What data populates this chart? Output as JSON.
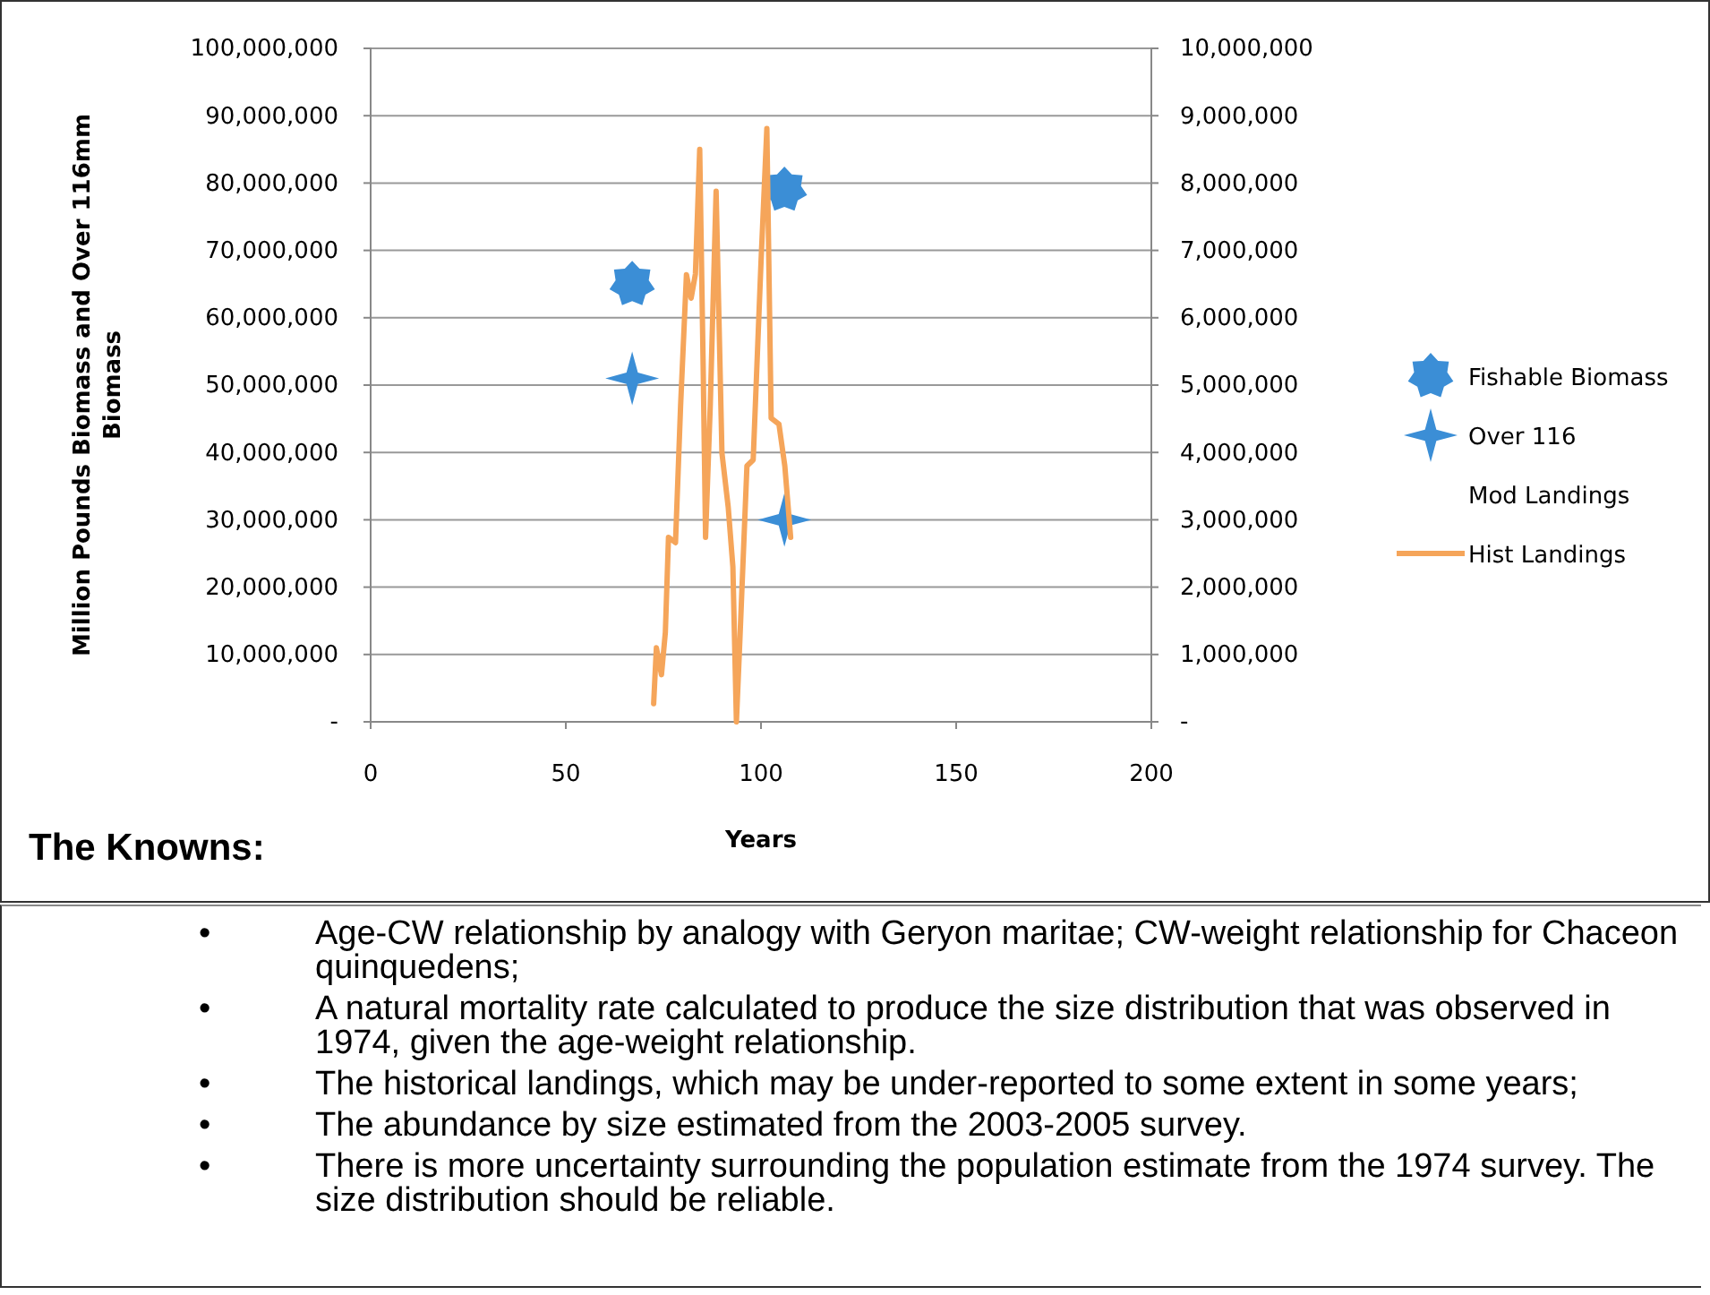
{
  "chart_data": {
    "type": "scatter",
    "xlabel": "Years",
    "ylabel": "Million Pounds Biomass and Over 116mm Biomass",
    "xlim": [
      0,
      200
    ],
    "xticks": [
      0,
      50,
      100,
      150,
      200
    ],
    "ylim": [
      0,
      100000000
    ],
    "yticks": [
      {
        "value": 0,
        "label": "-"
      },
      {
        "value": 10000000,
        "label": "10,000,000"
      },
      {
        "value": 20000000,
        "label": "20,000,000"
      },
      {
        "value": 30000000,
        "label": "30,000,000"
      },
      {
        "value": 40000000,
        "label": "40,000,000"
      },
      {
        "value": 50000000,
        "label": "50,000,000"
      },
      {
        "value": 60000000,
        "label": "60,000,000"
      },
      {
        "value": 70000000,
        "label": "70,000,000"
      },
      {
        "value": 80000000,
        "label": "80,000,000"
      },
      {
        "value": 90000000,
        "label": "90,000,000"
      },
      {
        "value": 100000000,
        "label": "100,000,000"
      }
    ],
    "y2lim": [
      0,
      10000000
    ],
    "y2ticks": [
      {
        "value": 0,
        "label": "-"
      },
      {
        "value": 1000000,
        "label": "1,000,000"
      },
      {
        "value": 2000000,
        "label": "2,000,000"
      },
      {
        "value": 3000000,
        "label": "3,000,000"
      },
      {
        "value": 4000000,
        "label": "4,000,000"
      },
      {
        "value": 5000000,
        "label": "5,000,000"
      },
      {
        "value": 6000000,
        "label": "6,000,000"
      },
      {
        "value": 7000000,
        "label": "7,000,000"
      },
      {
        "value": 8000000,
        "label": "8,000,000"
      },
      {
        "value": 9000000,
        "label": "9,000,000"
      },
      {
        "value": 10000000,
        "label": "10,000,000"
      }
    ],
    "grid": "y",
    "legend": "right",
    "series": [
      {
        "name": "Fishable Biomass",
        "marker": "star",
        "color": "#3b8ed6",
        "x": [
          67,
          106
        ],
        "values": [
          65000000,
          79000000
        ]
      },
      {
        "name": "Over 116",
        "marker": "cross",
        "color": "#3b8ed6",
        "x": [
          67,
          106
        ],
        "values": [
          51000000,
          30000000
        ]
      },
      {
        "name": "Mod Landings"
      },
      {
        "name": "Hist Landings",
        "type": "line",
        "marker": "none",
        "color": "#f5a55a",
        "axis": "y2",
        "x": [
          72.5,
          73.2,
          74.5,
          75.5,
          76.3,
          78.1,
          79.4,
          80.9,
          82.1,
          83.2,
          84.3,
          85.2,
          85.8,
          87,
          88.5,
          90,
          91.6,
          92.8,
          93.7,
          94.6,
          96.4,
          98,
          100,
          101.5,
          102.6,
          104.6,
          106.1,
          107.6
        ],
        "values": [
          270000,
          1100000,
          700000,
          1330000,
          2740000,
          2660000,
          4690000,
          6640000,
          6290000,
          6650000,
          8500000,
          5220000,
          2740000,
          4690000,
          7880000,
          3990000,
          3190000,
          2300000,
          0,
          1230000,
          3800000,
          3890000,
          6820000,
          8810000,
          4510000,
          4420000,
          3800000,
          2740000
        ]
      }
    ],
    "annotations": [
      "The Knowns:",
      "• Age-CW relationship by analogy with Geryon maritae; CW-weight relationship for Chaceon quinquedens;",
      "• A natural mortality rate calculated to produce the size distribution that was observed in 1974, given the age-weight relationship.",
      "• The historical landings, which may be under-reported to some extent in some years;",
      "• The abundance by size estimated from the 2003-2005 survey.",
      "• There is more uncertainty surrounding the population estimate from the 1974 survey.  The size distribution should be reliable."
    ]
  }
}
